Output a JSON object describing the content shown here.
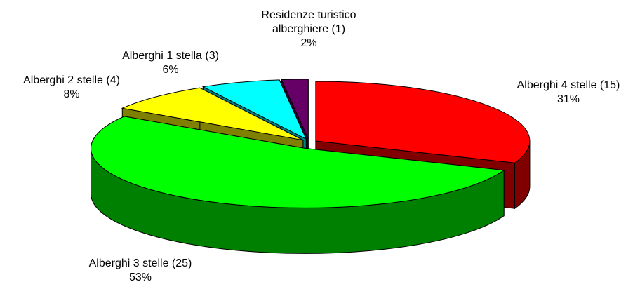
{
  "chart_data": {
    "type": "pie",
    "categories": [
      "Alberghi 4 stelle (15)",
      "Alberghi 3 stelle (25)",
      "Alberghi 2 stelle (4)",
      "Alberghi 1 stella (3)",
      "Residenze turistico alberghiere (1)"
    ],
    "values": [
      31,
      53,
      8,
      6,
      2
    ],
    "value_labels": [
      "31%",
      "53%",
      "8%",
      "6%",
      "2%"
    ],
    "colors": [
      "#ff0000",
      "#00ff00",
      "#ffff00",
      "#00ffff",
      "#660066"
    ]
  }
}
